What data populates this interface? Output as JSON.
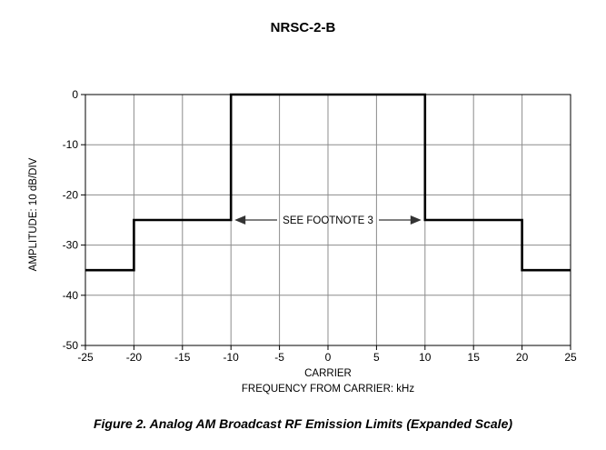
{
  "chart_data": {
    "type": "line",
    "title": "NRSC-2-B",
    "caption": "Figure 2. Analog AM Broadcast RF Emission Limits (Expanded Scale)",
    "xlabel_line1": "CARRIER",
    "xlabel_line2": "FREQUENCY FROM CARRIER: kHz",
    "ylabel": "AMPLITUDE: 10 dB/DIV",
    "xlim": [
      -25,
      25
    ],
    "ylim": [
      -50,
      0
    ],
    "x_ticks": [
      -25,
      -20,
      -15,
      -10,
      -5,
      0,
      5,
      10,
      15,
      20,
      25
    ],
    "y_ticks": [
      0,
      -10,
      -20,
      -30,
      -40,
      -50
    ],
    "grid": true,
    "series": [
      {
        "points": [
          [
            -25,
            -35
          ],
          [
            -20,
            -35
          ],
          [
            -20,
            -25
          ],
          [
            -10,
            -25
          ],
          [
            -10,
            0
          ],
          [
            10,
            0
          ],
          [
            10,
            -25
          ],
          [
            20,
            -25
          ],
          [
            20,
            -35
          ],
          [
            25,
            -35
          ]
        ]
      }
    ],
    "annotation": {
      "text": "SEE FOOTNOTE 3",
      "y": -25,
      "x_from": -10,
      "x_to": 10
    }
  }
}
